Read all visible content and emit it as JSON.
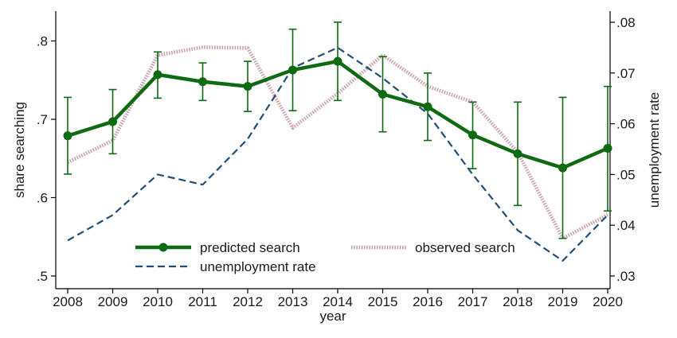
{
  "chart_data": {
    "type": "line",
    "xlabel": "year",
    "ylabel_left": "share searching",
    "ylabel_right": "unemployment rate",
    "x": [
      2008,
      2009,
      2010,
      2011,
      2012,
      2013,
      2014,
      2015,
      2016,
      2017,
      2018,
      2019,
      2020
    ],
    "x_ticks": [
      "2008",
      "2009",
      "2010",
      "2011",
      "2012",
      "2013",
      "2014",
      "2015",
      "2016",
      "2017",
      "2018",
      "2019",
      "2020"
    ],
    "ylim_left": [
      0.5,
      0.83
    ],
    "ylim_right": [
      0.03,
      0.08
    ],
    "left_ticks": [
      {
        "value": 0.5,
        "label": ".5"
      },
      {
        "value": 0.6,
        "label": ".6"
      },
      {
        "value": 0.7,
        "label": ".7"
      },
      {
        "value": 0.8,
        "label": ".8"
      }
    ],
    "right_ticks": [
      {
        "value": 0.03,
        "label": ".03"
      },
      {
        "value": 0.04,
        "label": ".04"
      },
      {
        "value": 0.05,
        "label": ".05"
      },
      {
        "value": 0.06,
        "label": ".06"
      },
      {
        "value": 0.07,
        "label": ".07"
      },
      {
        "value": 0.08,
        "label": ".08"
      }
    ],
    "grid": false,
    "legend_placement": "bottom-center",
    "series": [
      {
        "name": "predicted search",
        "axis": "left",
        "color": "#0e6b12",
        "style": "solid-markers",
        "values": [
          0.679,
          0.697,
          0.757,
          0.748,
          0.742,
          0.763,
          0.774,
          0.732,
          0.716,
          0.68,
          0.656,
          0.638,
          0.663
        ],
        "ci_lower": [
          0.63,
          0.656,
          0.727,
          0.724,
          0.71,
          0.711,
          0.724,
          0.684,
          0.673,
          0.637,
          0.59,
          0.548,
          0.583
        ],
        "ci_upper": [
          0.728,
          0.738,
          0.786,
          0.772,
          0.774,
          0.815,
          0.824,
          0.78,
          0.759,
          0.722,
          0.722,
          0.728,
          0.742
        ]
      },
      {
        "name": "observed search",
        "axis": "left",
        "color": "#c9a2a8",
        "style": "dotted-thick",
        "values": [
          0.645,
          0.673,
          0.782,
          0.792,
          0.791,
          0.689,
          0.733,
          0.782,
          0.742,
          0.722,
          0.658,
          0.548,
          0.578
        ]
      },
      {
        "name": "unemployment rate",
        "axis": "right",
        "color": "#1f4e79",
        "style": "dashed",
        "values": [
          0.037,
          0.042,
          0.05,
          0.048,
          0.057,
          0.071,
          0.075,
          0.069,
          0.062,
          0.05,
          0.039,
          0.033,
          0.042
        ]
      }
    ],
    "legend": [
      {
        "series": 0,
        "label": "predicted search"
      },
      {
        "series": 1,
        "label": "observed search"
      },
      {
        "series": 2,
        "label": "unemployment rate"
      }
    ]
  }
}
